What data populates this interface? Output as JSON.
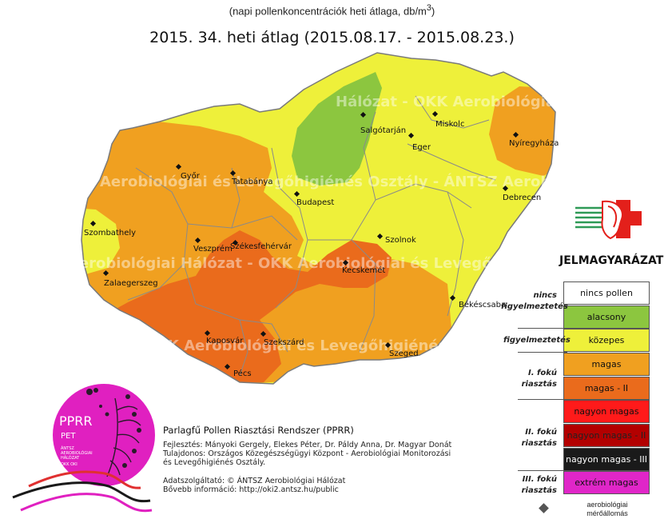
{
  "subtitle_text": "(napi pollenkoncentrációk heti átlaga, db/m",
  "subtitle_sup": "3",
  "subtitle_end": ")",
  "title": "2015. 34. heti átlag (2015.08.17. - 2015.08.23.)",
  "watermarks": [
    "Hálózat - OKK Aerobiológiai és Levegőhigiénés Osztály - ÁNTSZ Aerobio",
    "Aerobiológiai és Levegőhigiénés Osztály - ÁNTSZ Aerobiológiai",
    "Aerobiológiai Hálózat - OKK Aerobiológiai és Levegőhigiénés",
    "at - OKK Aerobiológiai és Levegőhigiénés Oszt"
  ],
  "cities": [
    {
      "id": "salgotarjan",
      "name": "Salgótarján"
    },
    {
      "id": "miskolc",
      "name": "Miskolc"
    },
    {
      "id": "eger",
      "name": "Eger"
    },
    {
      "id": "nyiregyhaza",
      "name": "Nyíregyháza"
    },
    {
      "id": "gyor",
      "name": "Győr"
    },
    {
      "id": "tatabanya",
      "name": "Tatabánya"
    },
    {
      "id": "budapest",
      "name": "Budapest"
    },
    {
      "id": "debrecen",
      "name": "Debrecen"
    },
    {
      "id": "szombathely",
      "name": "Szombathely"
    },
    {
      "id": "veszprem",
      "name": "Veszprém"
    },
    {
      "id": "szekesfehervar",
      "name": "Székesfehérvár"
    },
    {
      "id": "szolnok",
      "name": "Szolnok"
    },
    {
      "id": "zalaegerszeg",
      "name": "Zalaegerszeg"
    },
    {
      "id": "kecskemet",
      "name": "Kecskemét"
    },
    {
      "id": "bekescsaba",
      "name": "Békéscsaba"
    },
    {
      "id": "kaposvar",
      "name": "Kaposvár"
    },
    {
      "id": "szekszard",
      "name": "Szekszárd"
    },
    {
      "id": "szeged",
      "name": "Szeged"
    },
    {
      "id": "pecs",
      "name": "Pécs"
    }
  ],
  "legend": {
    "title": "JELMAGYARÁZAT",
    "levels": [
      {
        "label": "nincs pollen",
        "color": "#ffffff",
        "text_color": "#111111"
      },
      {
        "label": "alacsony",
        "color": "#8cc63f",
        "text_color": "#111111"
      },
      {
        "label": "közepes",
        "color": "#eef03a",
        "text_color": "#111111"
      },
      {
        "label": "magas",
        "color": "#f0a020",
        "text_color": "#111111"
      },
      {
        "label": "magas - II",
        "color": "#ea6b1c",
        "text_color": "#111111"
      },
      {
        "label": "nagyon magas",
        "color": "#ff1a1a",
        "text_color": "#111111"
      },
      {
        "label": "nagyon magas - II",
        "color": "#b30000",
        "text_color": "#222222"
      },
      {
        "label": "nagyon magas - III",
        "color": "#1a1a1a",
        "text_color": "#ffffff"
      },
      {
        "label": "extrém magas",
        "color": "#e026c8",
        "text_color": "#111111"
      }
    ],
    "categories": [
      {
        "lines": [
          "nincs",
          "figyelmeztetés"
        ]
      },
      {
        "lines": [
          "figyelmeztetés"
        ]
      },
      {
        "lines": [
          "I. fokú",
          "riasztás"
        ]
      },
      {
        "lines": [
          "II. fokú",
          "riasztás"
        ]
      },
      {
        "lines": [
          "III. fokú",
          "riasztás"
        ]
      }
    ],
    "station_label_1": "aerobiológiai",
    "station_label_2": "mérőállomás"
  },
  "logo": {
    "title": "PPRR",
    "sub": "PET",
    "small1": "ÁNTSZ",
    "small2": "AEROBIOLÓGIAI",
    "small3": "HÁLÓZAT",
    "small4": "OKK OKI"
  },
  "info": {
    "heading": "Parlagfű Pollen Riasztási Rendszer (PPRR)",
    "dev": "Fejlesztés: Mányoki Gergely, Elekes Péter, Dr. Páldy Anna, Dr. Magyar Donát",
    "owner1": "Tulajdonos: Országos Közegészségügyi Központ - Aerobiológiai Monitorozási",
    "owner2": "és Levegőhigiénés Osztály.",
    "provider": "Adatszolgáltató: © ÁNTSZ Aerobiológiai Hálózat",
    "more": "Bővebb információ: http://oki2.antsz.hu/public"
  }
}
